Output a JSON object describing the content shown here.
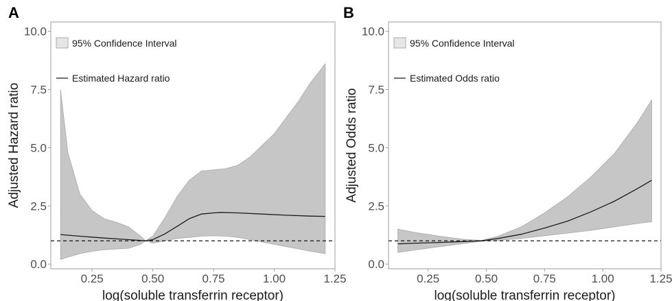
{
  "colors": {
    "band": "#c6c6c6",
    "band_stroke": "#a9a9a9",
    "line": "#1a1a1a",
    "frame": "#9e9e9e",
    "ref_line": "#111111"
  },
  "chart_data": [
    {
      "type": "line",
      "panel_label": "A",
      "xlabel": "log(soluble transferrin receptor)",
      "ylabel": "Adjusted Hazard ratio",
      "xlim": [
        0.08,
        1.25
      ],
      "ylim": [
        -0.2,
        10.4
      ],
      "x_ticks": [
        "0.25",
        "0.50",
        "0.75",
        "1.00",
        "1.25"
      ],
      "x_tick_values": [
        0.25,
        0.5,
        0.75,
        1.0,
        1.25
      ],
      "y_ticks": [
        "0.0",
        "2.5",
        "5.0",
        "7.5",
        "10.0"
      ],
      "y_tick_values": [
        0,
        2.5,
        5,
        7.5,
        10
      ],
      "legend": {
        "band_label": "95% Confidence Interval",
        "line_label": "Estimated Hazard ratio",
        "placement": "top-left"
      },
      "reference_line": 1,
      "series": [
        {
          "name": "Estimated Hazard ratio",
          "x": [
            0.12,
            0.2,
            0.3,
            0.4,
            0.47,
            0.5,
            0.55,
            0.6,
            0.65,
            0.7,
            0.75,
            0.78,
            0.85,
            0.95,
            1.05,
            1.15,
            1.21
          ],
          "y": [
            1.27,
            1.2,
            1.12,
            1.05,
            1.0,
            1.05,
            1.3,
            1.62,
            1.95,
            2.15,
            2.2,
            2.22,
            2.2,
            2.15,
            2.1,
            2.06,
            2.05
          ]
        }
      ],
      "ci": {
        "name": "95% Confidence Interval",
        "x": [
          0.12,
          0.15,
          0.2,
          0.25,
          0.3,
          0.35,
          0.4,
          0.45,
          0.47,
          0.5,
          0.55,
          0.6,
          0.65,
          0.7,
          0.75,
          0.8,
          0.85,
          0.9,
          0.95,
          1.0,
          1.05,
          1.1,
          1.15,
          1.21
        ],
        "lower": [
          0.2,
          0.3,
          0.45,
          0.55,
          0.62,
          0.65,
          0.68,
          0.85,
          1.0,
          0.9,
          1.0,
          1.1,
          1.15,
          1.2,
          1.22,
          1.2,
          1.15,
          1.05,
          0.95,
          0.85,
          0.75,
          0.65,
          0.55,
          0.45
        ],
        "upper": [
          7.5,
          4.8,
          3.0,
          2.3,
          1.95,
          1.8,
          1.6,
          1.2,
          1.0,
          1.2,
          2.0,
          2.9,
          3.6,
          4.0,
          4.05,
          4.1,
          4.25,
          4.6,
          5.1,
          5.6,
          6.3,
          7.0,
          7.8,
          8.6
        ]
      }
    },
    {
      "type": "line",
      "panel_label": "B",
      "xlabel": "log(soluble transferrin receptor)",
      "ylabel": "Adjusted Odds ratio",
      "xlim": [
        0.08,
        1.25
      ],
      "ylim": [
        -0.2,
        10.4
      ],
      "x_ticks": [
        "0.25",
        "0.50",
        "0.75",
        "1.00",
        "1.25"
      ],
      "x_tick_values": [
        0.25,
        0.5,
        0.75,
        1.0,
        1.25
      ],
      "y_ticks": [
        "0.0",
        "2.5",
        "5.0",
        "7.5",
        "10.0"
      ],
      "y_tick_values": [
        0,
        2.5,
        5,
        7.5,
        10
      ],
      "legend": {
        "band_label": "95% Confidence Interval",
        "line_label": "Estimated Odds ratio",
        "placement": "top-left"
      },
      "reference_line": 1,
      "series": [
        {
          "name": "Estimated Odds ratio",
          "x": [
            0.12,
            0.2,
            0.3,
            0.4,
            0.48,
            0.55,
            0.65,
            0.75,
            0.85,
            0.95,
            1.05,
            1.15,
            1.21
          ],
          "y": [
            0.87,
            0.9,
            0.93,
            0.97,
            1.0,
            1.1,
            1.28,
            1.55,
            1.85,
            2.25,
            2.7,
            3.25,
            3.6
          ]
        }
      ],
      "ci": {
        "name": "95% Confidence Interval",
        "x": [
          0.12,
          0.2,
          0.3,
          0.4,
          0.48,
          0.55,
          0.65,
          0.75,
          0.85,
          0.95,
          1.05,
          1.15,
          1.21
        ],
        "lower": [
          0.5,
          0.62,
          0.75,
          0.88,
          0.98,
          1.02,
          1.1,
          1.22,
          1.33,
          1.45,
          1.6,
          1.75,
          1.82
        ],
        "upper": [
          1.5,
          1.35,
          1.2,
          1.07,
          1.02,
          1.2,
          1.6,
          2.2,
          2.9,
          3.75,
          4.75,
          6.1,
          7.05
        ]
      }
    }
  ]
}
